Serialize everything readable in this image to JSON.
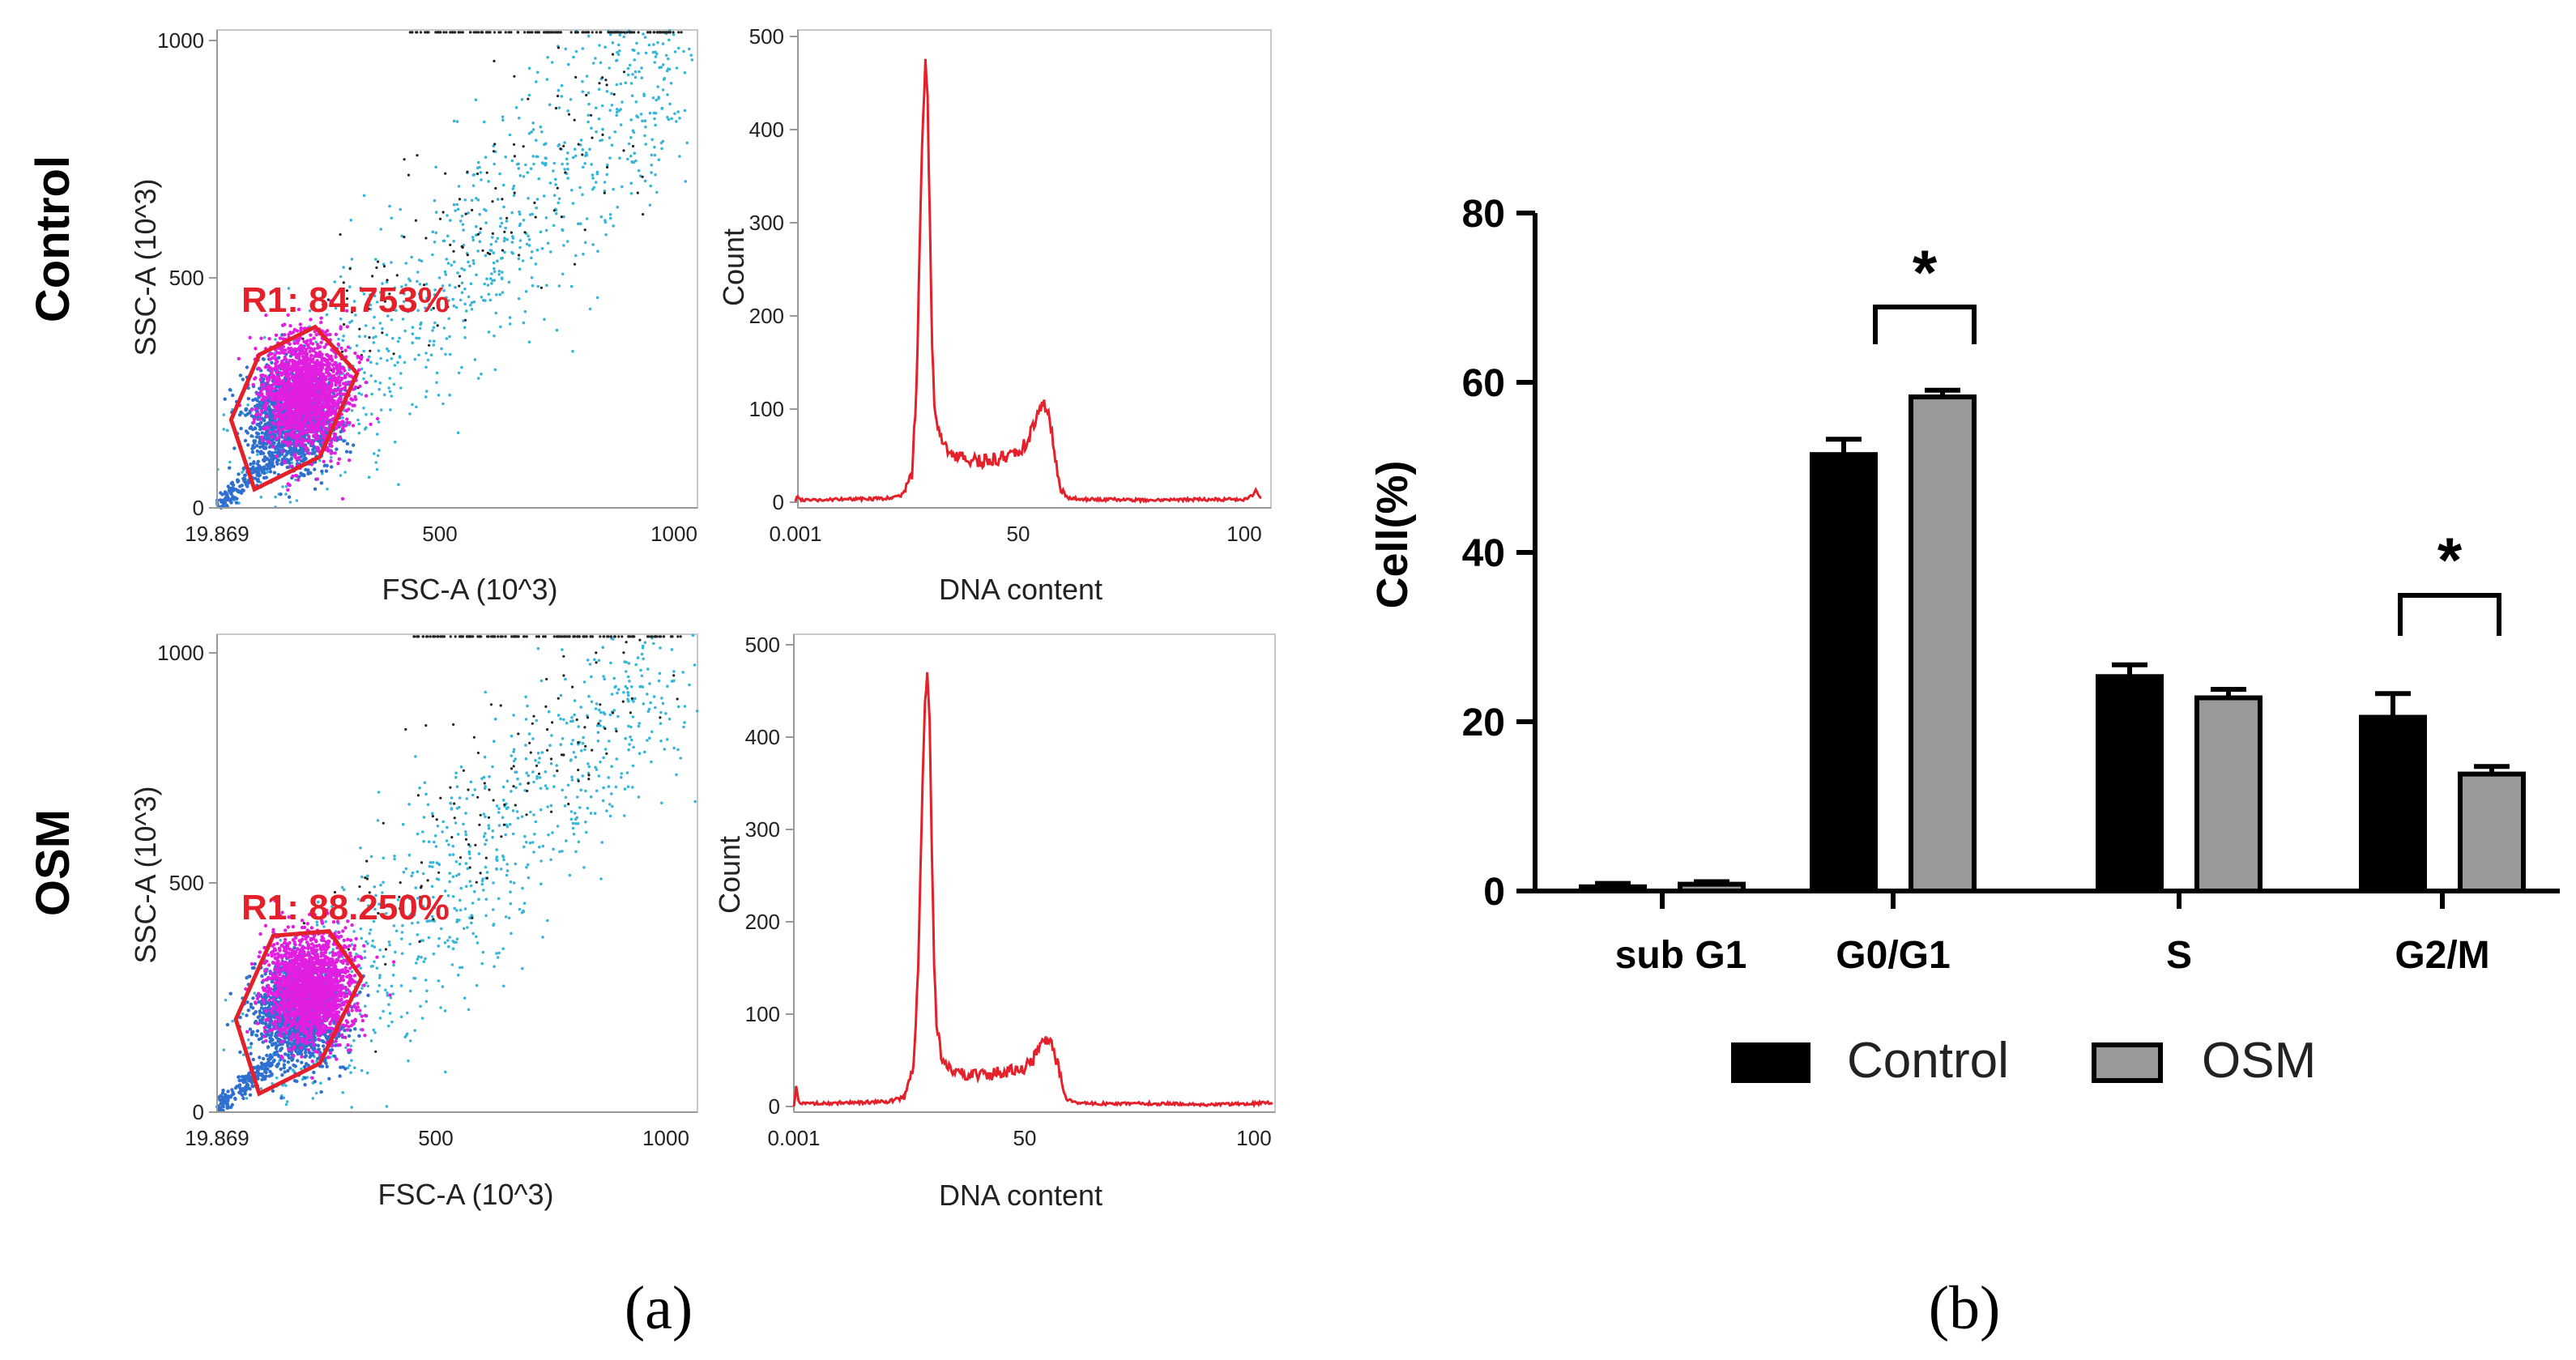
{
  "figure": {
    "panel_a_label": "(a)",
    "panel_b_label": "(b)"
  },
  "colors": {
    "hist_line": "#e4202a",
    "gate": "#e4202a",
    "gate_text": "#e4202a",
    "dot_cyan": "#38b6d9",
    "dot_blue": "#2f6fd0",
    "dot_magenta": "#e21fe0",
    "dot_black": "#222222",
    "control_bar": "#000000",
    "osm_bar": "#999999"
  },
  "chart_data": [
    {
      "id": "control-scatter",
      "type": "scatter",
      "row_label": "Control",
      "xlabel": "FSC-A (10^3)",
      "ylabel": "SSC-A (10^3)",
      "x_ticks": [
        "19.869",
        "500",
        "1000"
      ],
      "y_ticks": [
        "0",
        "500",
        "1000"
      ],
      "xlim": [
        19.869,
        1050
      ],
      "ylim": [
        0,
        1030
      ],
      "gate_label": "R1: 84.753%",
      "gate_polygon": [
        [
          100,
          40
        ],
        [
          240,
          110
        ],
        [
          320,
          290
        ],
        [
          230,
          390
        ],
        [
          110,
          330
        ],
        [
          50,
          190
        ]
      ],
      "population_center": [
        200,
        230
      ]
    },
    {
      "id": "control-histogram",
      "type": "line",
      "xlabel": "DNA content",
      "ylabel": "Count",
      "x_ticks": [
        "0.001",
        "50",
        "100"
      ],
      "y_ticks": [
        "0",
        "100",
        "200",
        "300",
        "400",
        "500"
      ],
      "xlim": [
        0,
        105
      ],
      "ylim": [
        0,
        500
      ],
      "series": [
        {
          "name": "Control",
          "x": [
            0,
            0.5,
            1,
            3,
            10,
            20,
            24,
            26,
            27,
            28,
            28.5,
            29,
            29.5,
            30,
            30.5,
            31,
            32,
            33,
            35,
            38,
            41,
            44,
            47,
            50,
            52,
            53.5,
            54.5,
            55.5,
            56.5,
            58,
            59,
            61,
            64,
            70,
            80,
            90,
            100,
            101,
            102,
            103,
            104
          ],
          "y": [
            0,
            8,
            3,
            2,
            3,
            4,
            8,
            30,
            120,
            330,
            420,
            472,
            430,
            300,
            170,
            110,
            75,
            62,
            52,
            46,
            44,
            46,
            48,
            54,
            68,
            85,
            100,
            108,
            96,
            50,
            15,
            5,
            3,
            3,
            2,
            3,
            3,
            4,
            8,
            12,
            5
          ]
        }
      ]
    },
    {
      "id": "osm-scatter",
      "type": "scatter",
      "row_label": "OSM",
      "xlabel": "FSC-A (10^3)",
      "ylabel": "SSC-A (10^3)",
      "x_ticks": [
        "19.869",
        "500",
        "1000"
      ],
      "y_ticks": [
        "0",
        "500",
        "1000"
      ],
      "xlim": [
        19.869,
        1050
      ],
      "ylim": [
        0,
        1030
      ],
      "gate_label": "R1: 88.250%",
      "gate_polygon": [
        [
          110,
          40
        ],
        [
          240,
          105
        ],
        [
          330,
          290
        ],
        [
          260,
          390
        ],
        [
          140,
          380
        ],
        [
          60,
          200
        ]
      ],
      "population_center": [
        210,
        250
      ]
    },
    {
      "id": "osm-histogram",
      "type": "line",
      "xlabel": "DNA content",
      "ylabel": "Count",
      "x_ticks": [
        "0.001",
        "50",
        "100"
      ],
      "y_ticks": [
        "0",
        "100",
        "200",
        "300",
        "400",
        "500"
      ],
      "xlim": [
        0,
        105
      ],
      "ylim": [
        0,
        500
      ],
      "series": [
        {
          "name": "OSM",
          "x": [
            0,
            0.5,
            1,
            3,
            10,
            20,
            24,
            26,
            27,
            28,
            28.5,
            29,
            29.5,
            30,
            30.5,
            31,
            32,
            33,
            35,
            38,
            41,
            44,
            47,
            50,
            52,
            53.5,
            54.5,
            55.5,
            56.5,
            58,
            59,
            61,
            64,
            70,
            80,
            90,
            100,
            103,
            104
          ],
          "y": [
            0,
            20,
            5,
            3,
            4,
            5,
            10,
            40,
            150,
            360,
            440,
            466,
            420,
            280,
            150,
            90,
            55,
            44,
            38,
            35,
            34,
            36,
            38,
            42,
            52,
            62,
            70,
            72,
            62,
            30,
            10,
            4,
            3,
            3,
            3,
            2,
            3,
            5,
            2
          ]
        }
      ]
    },
    {
      "id": "cell-cycle-bars",
      "type": "bar",
      "title": "",
      "xlabel": "",
      "ylabel": "Cell(%)",
      "ylim": [
        0,
        80
      ],
      "y_ticks": [
        "0",
        "20",
        "40",
        "60",
        "80"
      ],
      "categories": [
        "sub G1",
        "G0/G1",
        "S",
        "G2/M"
      ],
      "series": [
        {
          "name": "Control",
          "values": [
            0.5,
            51.5,
            25.3,
            20.5
          ],
          "errors": [
            0.4,
            1.8,
            1.4,
            2.8
          ]
        },
        {
          "name": "OSM",
          "values": [
            0.8,
            58.3,
            22.8,
            13.8
          ],
          "errors": [
            0.3,
            0.8,
            1.0,
            0.9
          ]
        }
      ],
      "significance": [
        {
          "category": "G0/G1",
          "marker": "*"
        },
        {
          "category": "G2/M",
          "marker": "*"
        }
      ],
      "legend": [
        "Control",
        "OSM"
      ],
      "legend_position": "bottom"
    }
  ]
}
